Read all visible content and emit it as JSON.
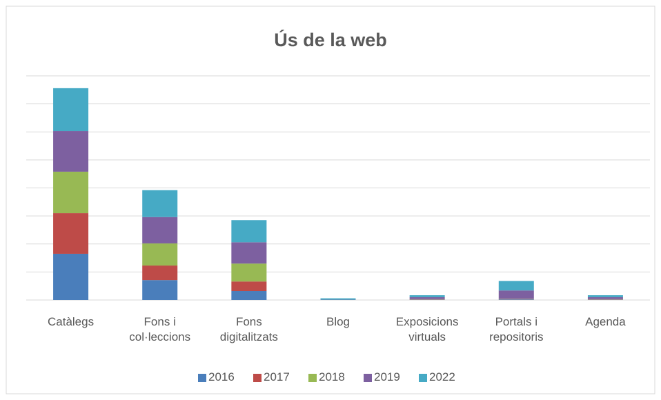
{
  "chart_data": {
    "type": "bar",
    "stacked": true,
    "title": "Ús de la web",
    "categories": [
      "Catàlegs",
      "Fons i col·leccions",
      "Fons digitalitzats",
      "Blog",
      "Exposicions virtuals",
      "Portals i repositoris",
      "Agenda"
    ],
    "series": [
      {
        "name": "2016",
        "color": "#4a7ebb",
        "values": [
          1.65,
          0.71,
          0.32,
          0,
          0.01,
          0.02,
          0.01
        ]
      },
      {
        "name": "2017",
        "color": "#be4b48",
        "values": [
          1.45,
          0.52,
          0.34,
          0,
          0.01,
          0.01,
          0.01
        ]
      },
      {
        "name": "2018",
        "color": "#98b954",
        "values": [
          1.48,
          0.79,
          0.64,
          0,
          0.01,
          0.01,
          0.01
        ]
      },
      {
        "name": "2019",
        "color": "#7d60a0",
        "values": [
          1.45,
          0.94,
          0.76,
          0.01,
          0.07,
          0.3,
          0.07
        ]
      },
      {
        "name": "2022",
        "color": "#46aac5",
        "values": [
          1.53,
          0.96,
          0.79,
          0.05,
          0.07,
          0.34,
          0.07
        ]
      }
    ],
    "ylim": [
      0,
      8
    ],
    "yticks": [
      0,
      1,
      2,
      3,
      4,
      5,
      6,
      7,
      8
    ],
    "grid": true,
    "legend": "bottom"
  }
}
